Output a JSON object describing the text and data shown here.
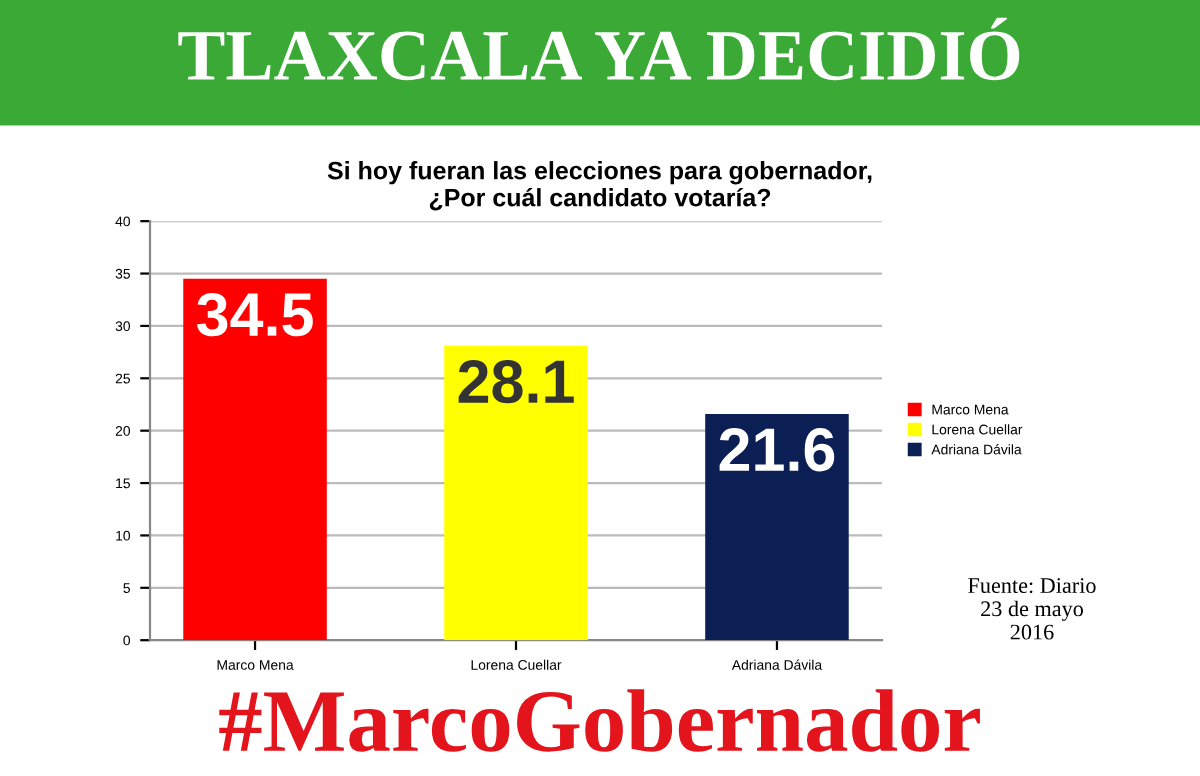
{
  "chart_data": {
    "type": "bar",
    "title": "TLAXCALA YA DECIDIÓ",
    "subtitle": "Si hoy fueran las elecciones para gobernador,\n¿Por cuál candidato votaría?",
    "categories": [
      "Marco Mena",
      "Lorena Cuellar",
      "Adriana Dávila"
    ],
    "series": [
      {
        "name": "Marco Mena",
        "color": "#ff0000",
        "values": [
          34.5,
          null,
          null
        ]
      },
      {
        "name": "Lorena Cuellar",
        "color": "#ffff00",
        "values": [
          null,
          28.1,
          null
        ]
      },
      {
        "name": "Adriana Dávila",
        "color": "#0c1f55",
        "values": [
          null,
          null,
          21.6
        ]
      }
    ],
    "ylim": [
      0,
      40
    ],
    "yticks": [
      0,
      5,
      10,
      15,
      20,
      25,
      30,
      35,
      40
    ],
    "grid": "y",
    "legend": "right",
    "data_labels": true,
    "annotations": [
      "Fuente: Diario\n23 de mayo\n2016",
      "#MarcoGobernador"
    ]
  }
}
